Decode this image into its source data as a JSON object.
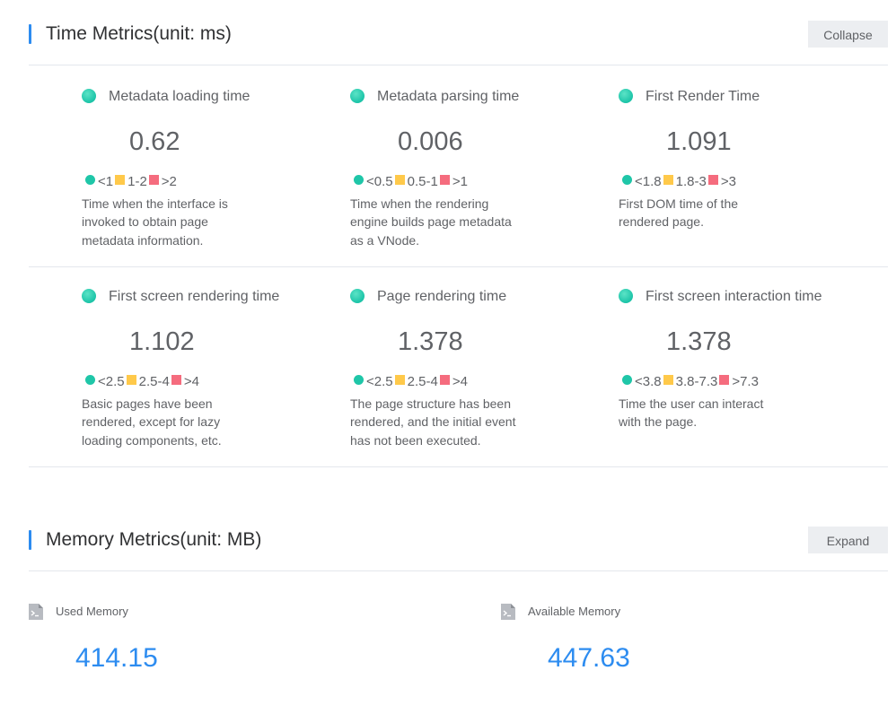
{
  "time_section": {
    "title": "Time Metrics(unit: ms)",
    "toggle_label": "Collapse"
  },
  "metrics": [
    {
      "name": "Metadata loading time",
      "value": "0.62",
      "good": "<1",
      "mid": "1-2",
      "bad": ">2",
      "description": "Time when the interface is invoked to obtain page metadata information."
    },
    {
      "name": "Metadata parsing time",
      "value": "0.006",
      "good": "<0.5",
      "mid": "0.5-1",
      "bad": ">1",
      "description": "Time when the rendering engine builds page metadata as a VNode."
    },
    {
      "name": "First Render Time",
      "value": "1.091",
      "good": "<1.8",
      "mid": "1.8-3",
      "bad": ">3",
      "description": "First DOM time of the rendered page."
    },
    {
      "name": "First screen rendering time",
      "value": "1.102",
      "good": "<2.5",
      "mid": "2.5-4",
      "bad": ">4",
      "description": "Basic pages have been rendered, except for lazy loading components, etc."
    },
    {
      "name": "Page rendering time",
      "value": "1.378",
      "good": "<2.5",
      "mid": "2.5-4",
      "bad": ">4",
      "description": "The page structure has been rendered, and the initial event has not been executed."
    },
    {
      "name": "First screen interaction time",
      "value": "1.378",
      "good": "<3.8",
      "mid": "3.8-7.3",
      "bad": ">7.3",
      "description": "Time the user can interact with the page."
    }
  ],
  "memory_section": {
    "title": "Memory Metrics(unit: MB)",
    "toggle_label": "Expand"
  },
  "memory": [
    {
      "label": "Used Memory",
      "value": "414.15",
      "icon": "terminal-file-icon"
    },
    {
      "label": "Available Memory",
      "value": "447.63",
      "icon": "terminal-file-icon"
    }
  ],
  "colors": {
    "accent": "#2d8cf0",
    "good": "#1fc6a8",
    "mid": "#ffc94a",
    "bad": "#f56c7e"
  }
}
